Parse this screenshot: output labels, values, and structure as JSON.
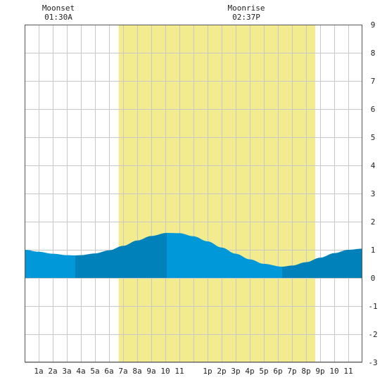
{
  "moon_events": [
    {
      "label": "Moonset",
      "time": "01:30A"
    },
    {
      "label": "Moonrise",
      "time": "02:37P"
    }
  ],
  "colors": {
    "daylight": "#f3ec8f",
    "tide_light": "#0098d8",
    "tide_dark": "#0081b9",
    "grid": "#c8c8c8",
    "border": "#555555"
  },
  "chart_data": {
    "type": "area",
    "title": "",
    "xlabel": "",
    "ylabel": "",
    "xlim": [
      0,
      24
    ],
    "ylim": [
      -3,
      9
    ],
    "yticks": [
      -3,
      -2,
      -1,
      0,
      1,
      2,
      3,
      4,
      5,
      6,
      7,
      8,
      9
    ],
    "xtick_labels": [
      "1a",
      "2a",
      "3a",
      "4a",
      "5a",
      "6a",
      "7a",
      "8a",
      "9a",
      "10",
      "11",
      "1p",
      "2p",
      "3p",
      "4p",
      "5p",
      "6p",
      "7p",
      "8p",
      "9p",
      "10",
      "11"
    ],
    "xtick_hours": [
      1,
      2,
      3,
      4,
      5,
      6,
      7,
      8,
      9,
      10,
      11,
      13,
      14,
      15,
      16,
      17,
      18,
      19,
      20,
      21,
      22,
      23
    ],
    "daylight": {
      "start_hour": 6.68,
      "end_hour": 20.65
    },
    "tide_extremes": [
      {
        "hour": 3.6,
        "height": 0.8,
        "type": "low"
      },
      {
        "hour": 10.1,
        "height": 1.6,
        "type": "high"
      },
      {
        "hour": 18.3,
        "height": 0.4,
        "type": "low"
      }
    ],
    "series": [
      {
        "x": [
          0,
          1,
          2,
          3,
          3.6,
          4,
          5,
          6,
          7,
          8,
          9,
          10.1,
          11,
          12,
          13,
          14,
          15,
          16,
          17,
          18.3,
          19,
          20,
          21,
          22,
          23,
          24
        ],
        "values": [
          1.0,
          0.93,
          0.86,
          0.81,
          0.8,
          0.81,
          0.87,
          0.98,
          1.14,
          1.33,
          1.49,
          1.6,
          1.59,
          1.48,
          1.3,
          1.08,
          0.86,
          0.66,
          0.5,
          0.4,
          0.44,
          0.56,
          0.72,
          0.88,
          1.0,
          1.04
        ]
      }
    ]
  }
}
